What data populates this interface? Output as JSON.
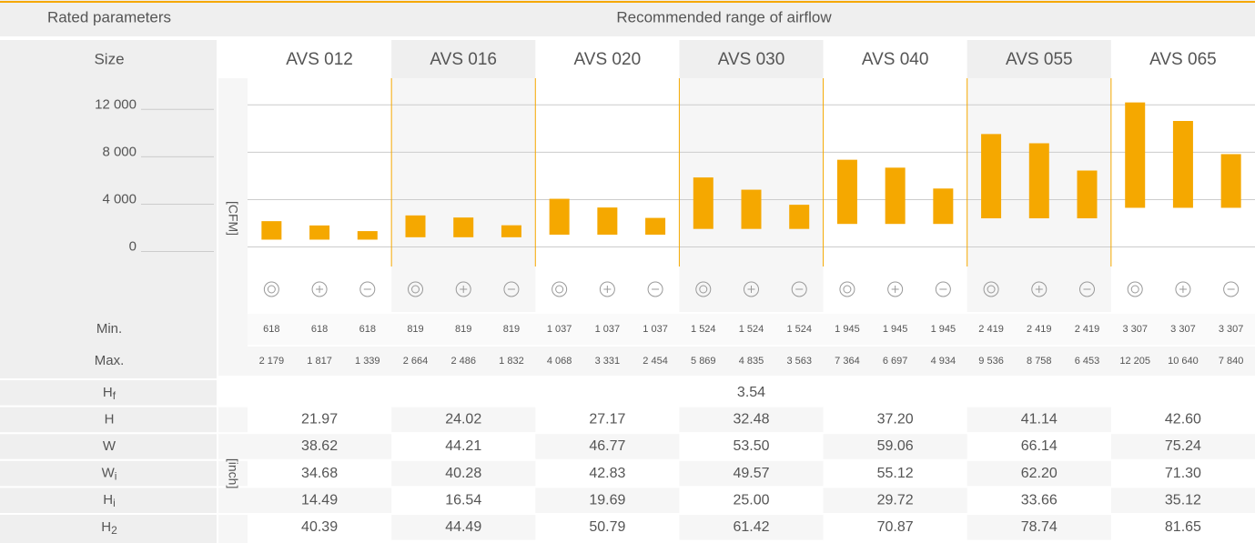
{
  "header": {
    "left": "Rated parameters",
    "right": "Recommended range of airflow"
  },
  "size_label": "Size",
  "sizes": [
    "AVS 012",
    "AVS 016",
    "AVS 020",
    "AVS 030",
    "AVS 040",
    "AVS 055",
    "AVS 065"
  ],
  "chart_data": {
    "type": "bar",
    "y_label": "[CFM]",
    "color": "#f5a800",
    "grid": true,
    "ylim": [
      -1650,
      14250
    ],
    "yticks": [
      0,
      {
        "value": 4000,
        "label": "4 000"
      },
      {
        "value": 8000,
        "label": "8 000"
      },
      {
        "value": 12000,
        "label": "12 000"
      }
    ],
    "series": [
      {
        "name": "Min.",
        "values": [
          618,
          618,
          618,
          819,
          819,
          819,
          1037,
          1037,
          1037,
          1524,
          1524,
          1524,
          1945,
          1945,
          1945,
          2419,
          2419,
          2419,
          3307,
          3307,
          3307
        ],
        "value_labels": [
          "618",
          "618",
          "618",
          "819",
          "819",
          "819",
          "1 037",
          "1 037",
          "1 037",
          "1 524",
          "1 524",
          "1 524",
          "1 945",
          "1 945",
          "1 945",
          "2 419",
          "2 419",
          "2 419",
          "3 307",
          "3 307",
          "3 307"
        ]
      },
      {
        "name": "Max.",
        "values": [
          2179,
          1817,
          1339,
          2664,
          2486,
          1832,
          4068,
          3331,
          2454,
          5869,
          4835,
          3563,
          7364,
          6697,
          4934,
          9536,
          8758,
          6453,
          12205,
          10640,
          7840
        ],
        "value_labels": [
          "2 179",
          "1 817",
          "1 339",
          "2 664",
          "2 486",
          "1 832",
          "4 068",
          "3 331",
          "2 454",
          "5 869",
          "4 835",
          "3 563",
          "7 364",
          "6 697",
          "4 934",
          "9 536",
          "8 758",
          "6 453",
          "12 205",
          "10 640",
          "7 840"
        ]
      }
    ]
  },
  "dimensions": {
    "unit": "[inch]",
    "rows": [
      {
        "label": "H",
        "sub": "f",
        "values": [
          "3.54"
        ]
      },
      {
        "label": "H",
        "values": [
          "21.97",
          "24.02",
          "27.17",
          "32.48",
          "37.20",
          "41.14",
          "42.60"
        ]
      },
      {
        "label": "W",
        "values": [
          "38.62",
          "44.21",
          "46.77",
          "53.50",
          "59.06",
          "66.14",
          "75.24"
        ]
      },
      {
        "label": "W",
        "sub": "i",
        "values": [
          "34.68",
          "40.28",
          "42.83",
          "49.57",
          "55.12",
          "62.20",
          "71.30"
        ]
      },
      {
        "label": "H",
        "sub": "i",
        "values": [
          "14.49",
          "16.54",
          "19.69",
          "25.00",
          "29.72",
          "33.66",
          "35.12"
        ]
      },
      {
        "label": "H",
        "sub": "2",
        "values": [
          "40.39",
          "44.49",
          "50.79",
          "61.42",
          "70.87",
          "78.74",
          "81.65"
        ]
      }
    ]
  }
}
